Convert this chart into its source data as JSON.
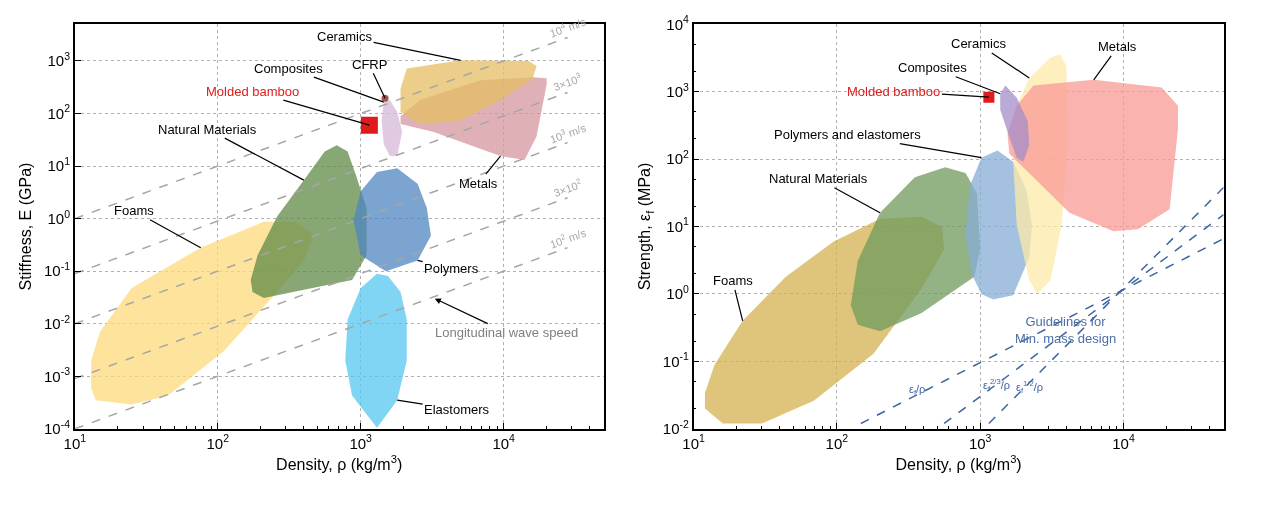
{
  "chart_data": [
    {
      "type": "area",
      "log": "xy",
      "grid": true,
      "xlabel": "Density, ρ (kg/m$^{3}$)",
      "ylabel": "Stiffness, E (GPa)",
      "xlim": [
        10,
        50000
      ],
      "ylim": [
        0.0001,
        5000
      ],
      "xticks": [
        {
          "value": 10,
          "label": "10$^{1}$"
        },
        {
          "value": 100,
          "label": "10$^{2}$"
        },
        {
          "value": 1000,
          "label": "10$^{3}$"
        },
        {
          "value": 10000,
          "label": "10$^{4}$"
        },
        {
          "value": 20,
          "label": null
        },
        {
          "value": 30,
          "label": null
        },
        {
          "value": 40,
          "label": null
        },
        {
          "value": 50,
          "label": null
        },
        {
          "value": 60,
          "label": null
        },
        {
          "value": 70,
          "label": null
        },
        {
          "value": 80,
          "label": null
        },
        {
          "value": 90,
          "label": null
        },
        {
          "value": 200,
          "label": null
        },
        {
          "value": 300,
          "label": null
        },
        {
          "value": 400,
          "label": null
        },
        {
          "value": 500,
          "label": null
        },
        {
          "value": 600,
          "label": null
        },
        {
          "value": 700,
          "label": null
        },
        {
          "value": 800,
          "label": null
        },
        {
          "value": 900,
          "label": null
        },
        {
          "value": 2000,
          "label": null
        },
        {
          "value": 3000,
          "label": null
        },
        {
          "value": 4000,
          "label": null
        },
        {
          "value": 5000,
          "label": null
        },
        {
          "value": 6000,
          "label": null
        },
        {
          "value": 7000,
          "label": null
        },
        {
          "value": 8000,
          "label": null
        },
        {
          "value": 9000,
          "label": null
        },
        {
          "value": 20000,
          "label": null
        },
        {
          "value": 30000,
          "label": null
        },
        {
          "value": 40000,
          "label": null
        }
      ],
      "yticks": [
        {
          "value": 0.0001,
          "label": "10$^{-4}$"
        },
        {
          "value": 0.001,
          "label": "10$^{-3}$"
        },
        {
          "value": 0.01,
          "label": "10$^{-2}$"
        },
        {
          "value": 0.1,
          "label": "10$^{-1}$"
        },
        {
          "value": 1,
          "label": "10$^{0}$"
        },
        {
          "value": 10,
          "label": "10$^{1}$"
        },
        {
          "value": 100,
          "label": "10$^{2}$"
        },
        {
          "value": 1000,
          "label": "10$^{3}$"
        }
      ],
      "series": [
        {
          "name": "Foams",
          "color": "#fcd97a",
          "x": [
            13,
            14,
            25,
            45,
            110,
            260,
            400,
            470,
            350,
            210,
            76,
            25,
            15,
            13
          ],
          "values": [
            0.0006,
            0.00035,
            0.00029,
            0.00043,
            0.003,
            0.04,
            0.16,
            0.47,
            0.87,
            0.87,
            0.28,
            0.048,
            0.007,
            0.002
          ]
        },
        {
          "name": "Natural Materials",
          "color": "#5f8a45",
          "x": [
            175,
            210,
            460,
            870,
            1100,
            1100,
            930,
            810,
            680,
            560,
            400,
            260,
            190,
            170
          ],
          "values": [
            0.04,
            0.031,
            0.048,
            0.068,
            0.2,
            1.6,
            6.5,
            19,
            25,
            19,
            5.4,
            1.1,
            0.2,
            0.068
          ]
        },
        {
          "name": "Polymers",
          "color": "#4f86c0",
          "x": [
            1000,
            1500,
            2500,
            3100,
            2900,
            2500,
            1800,
            1300,
            1000,
            890
          ],
          "values": [
            0.2,
            0.1,
            0.16,
            0.47,
            1.6,
            4.6,
            9.1,
            7.7,
            3.3,
            0.93
          ]
        },
        {
          "name": "Elastomers",
          "color": "#55c5f0",
          "x": [
            1300,
            1800,
            2100,
            2100,
            1900,
            1550,
            1300,
            1000,
            810,
            780,
            870
          ],
          "values": [
            0.000105,
            0.00035,
            0.002,
            0.012,
            0.04,
            0.081,
            0.089,
            0.048,
            0.012,
            0.002,
            0.00043
          ]
        },
        {
          "name": "Metals",
          "color": "#d4959e",
          "x": [
            1900,
            3200,
            9500,
            14000,
            17000,
            20000,
            20000,
            16000,
            6900,
            2600,
            1900
          ],
          "values": [
            63,
            45,
            15.5,
            13,
            37,
            360,
            470,
            490,
            430,
            180,
            89
          ]
        },
        {
          "name": "Ceramics",
          "color": "#e6be63",
          "x": [
            1900,
            2600,
            5000,
            9500,
            16000,
            17000,
            15000,
            5000,
            2100,
            1900
          ],
          "values": [
            107,
            63,
            74,
            180,
            470,
            800,
            1000,
            1030,
            720,
            300
          ]
        },
        {
          "name": "Composites",
          "color": "#d5b8d8",
          "x": [
            1800,
            1950,
            1800,
            1600,
            1450,
            1400,
            1450,
            1600
          ],
          "values": [
            15.5,
            45,
            107,
            180,
            165,
            74,
            26,
            15.5
          ]
        },
        {
          "type": "scatter",
          "name": "CFRP",
          "color": "#a8504f",
          "marker": "circle",
          "x": [
            1480
          ],
          "values": [
            195
          ]
        },
        {
          "type": "scatter",
          "name": "Molded bamboo",
          "color": "#e01b1b",
          "marker": "square",
          "x": [
            1150
          ],
          "values": [
            60
          ]
        },
        {
          "type": "line",
          "name": "10$^{4}$ m/s",
          "color": "#a6a6a6",
          "line_style": "dashed",
          "x": [
            10,
            28000
          ],
          "values": [
            1,
            2800
          ]
        },
        {
          "type": "line",
          "name": "3×10$^{3}$",
          "color": "#a6a6a6",
          "line_style": "dashed",
          "x": [
            10,
            28000
          ],
          "values": [
            0.09,
            252
          ]
        },
        {
          "type": "line",
          "name": "10$^{3}$ m/s",
          "color": "#a6a6a6",
          "line_style": "dashed",
          "x": [
            10,
            28000
          ],
          "values": [
            0.01,
            28
          ]
        },
        {
          "type": "line",
          "name": "3×10$^{2}$",
          "color": "#a6a6a6",
          "line_style": "dashed",
          "x": [
            10,
            28000
          ],
          "values": [
            0.0009,
            2.5
          ]
        },
        {
          "type": "line",
          "name": "10$^{2}$ m/s",
          "color": "#a6a6a6",
          "line_style": "dashed",
          "x": [
            10,
            28000
          ],
          "values": [
            0.0001,
            0.28
          ]
        }
      ],
      "annotations": [
        {
          "text": "Longitudinal wave speed",
          "x": 3300,
          "y": 0.03
        }
      ]
    },
    {
      "type": "area",
      "log": "xy",
      "grid": true,
      "xlabel": "Density, ρ (kg/m$^{3}$)",
      "ylabel": "Strength, ε$_{f}$ (MPa)",
      "xlim": [
        10,
        50000
      ],
      "ylim": [
        0.01,
        10000
      ],
      "xticks": [
        {
          "value": 10,
          "label": "10$^{1}$"
        },
        {
          "value": 100,
          "label": "10$^{2}$"
        },
        {
          "value": 1000,
          "label": "10$^{3}$"
        },
        {
          "value": 10000,
          "label": "10$^{4}$"
        },
        {
          "value": 20,
          "label": null
        },
        {
          "value": 30,
          "label": null
        },
        {
          "value": 40,
          "label": null
        },
        {
          "value": 50,
          "label": null
        },
        {
          "value": 60,
          "label": null
        },
        {
          "value": 70,
          "label": null
        },
        {
          "value": 80,
          "label": null
        },
        {
          "value": 90,
          "label": null
        },
        {
          "value": 200,
          "label": null
        },
        {
          "value": 300,
          "label": null
        },
        {
          "value": 400,
          "label": null
        },
        {
          "value": 500,
          "label": null
        },
        {
          "value": 600,
          "label": null
        },
        {
          "value": 700,
          "label": null
        },
        {
          "value": 800,
          "label": null
        },
        {
          "value": 900,
          "label": null
        },
        {
          "value": 2000,
          "label": null
        },
        {
          "value": 3000,
          "label": null
        },
        {
          "value": 4000,
          "label": null
        },
        {
          "value": 5000,
          "label": null
        },
        {
          "value": 6000,
          "label": null
        },
        {
          "value": 7000,
          "label": null
        },
        {
          "value": 8000,
          "label": null
        },
        {
          "value": 9000,
          "label": null
        },
        {
          "value": 20000,
          "label": null
        },
        {
          "value": 30000,
          "label": null
        },
        {
          "value": 40000,
          "label": null
        }
      ],
      "yticks": [
        {
          "value": 0.01,
          "label": "10$^{-2}$"
        },
        {
          "value": 0.1,
          "label": "10$^{-1}$"
        },
        {
          "value": 1,
          "label": "10$^{0}$"
        },
        {
          "value": 10,
          "label": "10$^{1}$"
        },
        {
          "value": 100,
          "label": "10$^{2}$"
        },
        {
          "value": 1000,
          "label": "10$^{3}$"
        },
        {
          "value": 10000,
          "label": "10$^{4}$"
        },
        {
          "value": 0.02,
          "label": null
        },
        {
          "value": 0.05,
          "label": null
        },
        {
          "value": 0.2,
          "label": null
        },
        {
          "value": 0.5,
          "label": null
        },
        {
          "value": 2,
          "label": null
        },
        {
          "value": 5,
          "label": null
        },
        {
          "value": 20,
          "label": null
        },
        {
          "value": 50,
          "label": null
        },
        {
          "value": 200,
          "label": null
        },
        {
          "value": 500,
          "label": null
        },
        {
          "value": 2000,
          "label": null
        },
        {
          "value": 5000,
          "label": null
        }
      ],
      "series": [
        {
          "name": "Foams",
          "color": "#d4b24f",
          "x": [
            12,
            16,
            30,
            69,
            180,
            390,
            560,
            540,
            390,
            200,
            95,
            44,
            22,
            14,
            12
          ],
          "values": [
            0.02,
            0.012,
            0.012,
            0.026,
            0.13,
            1.2,
            4.6,
            9.8,
            14,
            13,
            6,
            1.8,
            0.4,
            0.089,
            0.034
          ]
        },
        {
          "name": "Natural Materials",
          "color": "#6f9a5c",
          "x": [
            140,
            200,
            390,
            910,
            1000,
            950,
            790,
            570,
            350,
            200,
            140,
            125
          ],
          "values": [
            0.35,
            0.28,
            0.52,
            1.8,
            4.6,
            31,
            62,
            76,
            54,
            16,
            3.1,
            0.68
          ]
        },
        {
          "name": "Polymers and elastomers",
          "color": "#86aed6",
          "x": [
            1230,
            1700,
            2200,
            2300,
            2100,
            1700,
            1320,
            1020,
            850,
            790,
            870,
            1020
          ],
          "values": [
            0.83,
            0.96,
            3.5,
            10.5,
            35,
            91,
            134,
            105,
            41,
            7.9,
            2.0,
            1.0
          ]
        },
        {
          "name": "Ceramics",
          "color": "#fde9a8",
          "x": [
            2500,
            3100,
            3700,
            4100,
            4000,
            3600,
            3100,
            2200,
            1800,
            1700,
            1800,
            2200
          ],
          "values": [
            1.0,
            1.6,
            10.5,
            180,
            2400,
            3600,
            3200,
            1600,
            620,
            91,
            10.5,
            1.6
          ]
        },
        {
          "name": "Metals",
          "color": "#f99a96",
          "x": [
            2350,
            4200,
            8500,
            12600,
            21000,
            24000,
            24000,
            18500,
            6200,
            2350,
            1800,
            1550,
            1600
          ],
          "values": [
            54,
            16,
            8.5,
            9.1,
            18,
            280,
            620,
            1150,
            1500,
            1230,
            620,
            240,
            120
          ]
        },
        {
          "name": "Composites",
          "color": "#a48cc8",
          "x": [
            2000,
            2200,
            2150,
            1800,
            1500,
            1380,
            1380,
            1600,
            1800
          ],
          "values": [
            91,
            160,
            360,
            810,
            1230,
            930,
            540,
            210,
            105
          ]
        },
        {
          "type": "scatter",
          "name": "Molded bamboo",
          "color": "#e01b1b",
          "marker": "square",
          "x": [
            1150
          ],
          "values": [
            830
          ]
        },
        {
          "type": "line",
          "name": "ε$_{f}$/ρ",
          "color": "#3d64a3",
          "line_style": "dashed",
          "x": [
            147,
            50000
          ],
          "values": [
            0.012,
            6.6
          ]
        },
        {
          "type": "line",
          "name": "ε$_{f}$$^{2/3}$/ρ",
          "color": "#3d64a3",
          "line_style": "dashed",
          "x": [
            560,
            50000
          ],
          "values": [
            0.012,
            15
          ]
        },
        {
          "type": "line",
          "name": "ε$_{f}$$^{1/2}$/ρ",
          "color": "#3d64a3",
          "line_style": "dashed",
          "x": [
            1150,
            50000
          ],
          "values": [
            0.012,
            38
          ]
        }
      ],
      "annotations": [
        "Guidelines for\nMin. mass design"
      ]
    }
  ]
}
